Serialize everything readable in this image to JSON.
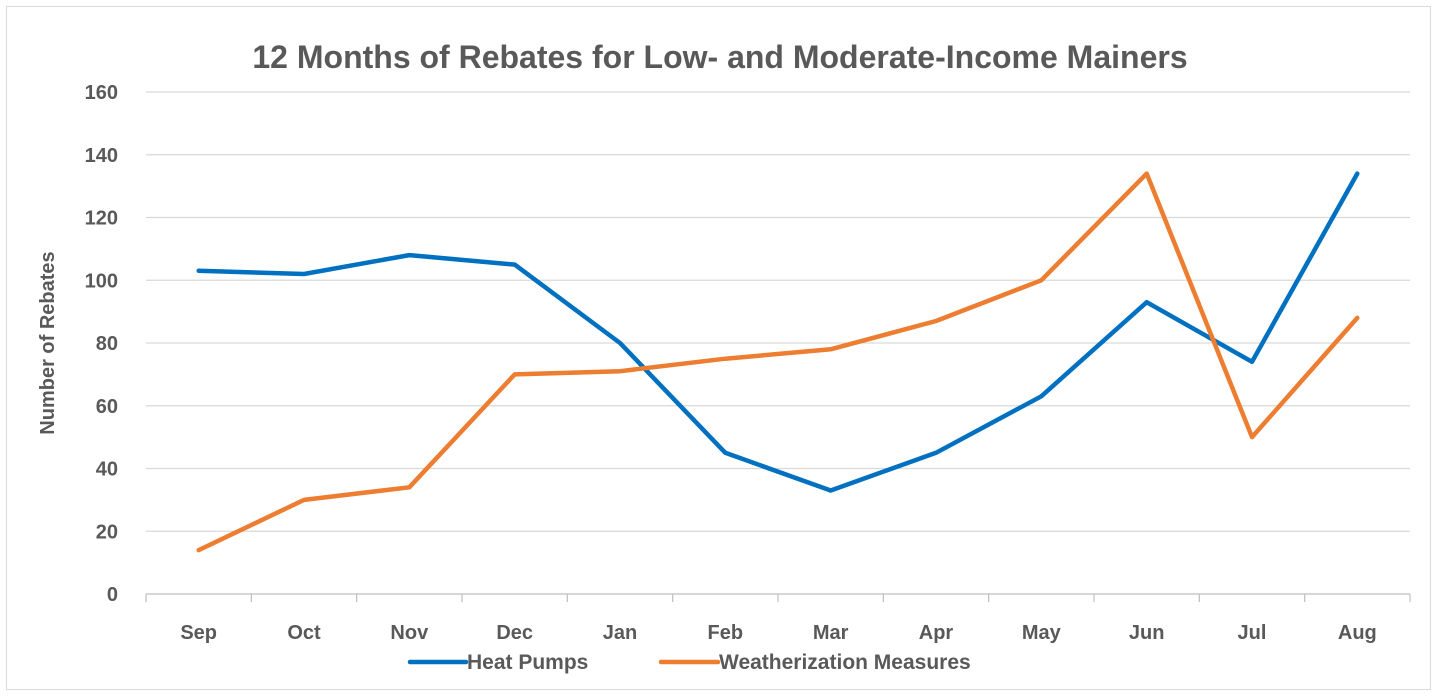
{
  "chart_data": {
    "type": "line",
    "title": "12 Months of Rebates for Low- and Moderate-Income Mainers",
    "xlabel": "",
    "ylabel": "Number of Rebates",
    "categories": [
      "Sep",
      "Oct",
      "Nov",
      "Dec",
      "Jan",
      "Feb",
      "Mar",
      "Apr",
      "May",
      "Jun",
      "Jul",
      "Aug"
    ],
    "ylim": [
      0,
      160
    ],
    "yticks": [
      0,
      20,
      40,
      60,
      80,
      100,
      120,
      140,
      160
    ],
    "grid": true,
    "legend_position": "bottom",
    "series": [
      {
        "name": "Heat Pumps",
        "color": "#0070c0",
        "values": [
          103,
          102,
          108,
          105,
          80,
          45,
          33,
          45,
          63,
          93,
          74,
          134
        ]
      },
      {
        "name": "Weatherization Measures",
        "color": "#ed7d31",
        "values": [
          14,
          30,
          34,
          70,
          71,
          75,
          78,
          87,
          100,
          134,
          50,
          88
        ]
      }
    ]
  }
}
